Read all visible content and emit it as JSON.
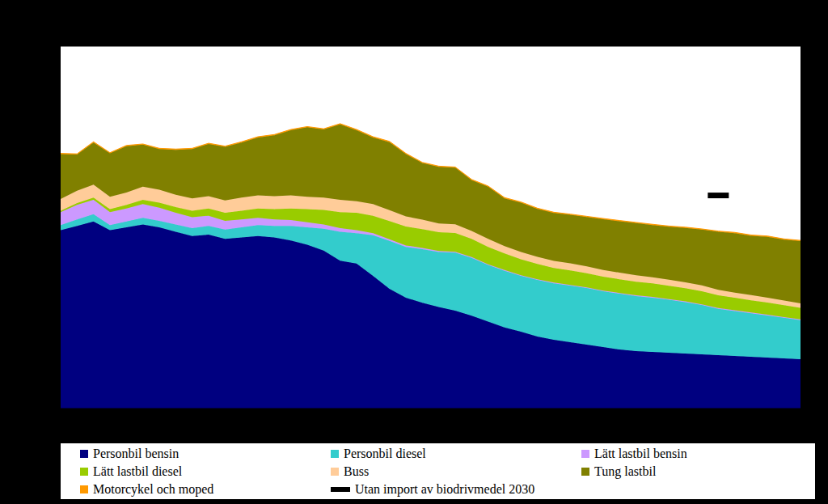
{
  "chart_data": {
    "type": "area",
    "stacked": true,
    "grid": true,
    "tick_labels": false,
    "legend": "bottom",
    "x": [
      1990,
      1991,
      1992,
      1993,
      1994,
      1995,
      1996,
      1997,
      1998,
      1999,
      2000,
      2001,
      2002,
      2003,
      2004,
      2005,
      2006,
      2007,
      2008,
      2009,
      2010,
      2011,
      2012,
      2013,
      2014,
      2015,
      2016,
      2017,
      2018,
      2019,
      2020,
      2021,
      2022,
      2023,
      2024,
      2025,
      2026,
      2027,
      2028,
      2029,
      2030,
      2031,
      2032,
      2033,
      2034,
      2035
    ],
    "xlim": [
      1990,
      2035
    ],
    "ylim": [
      0,
      25
    ],
    "yticks": [
      0,
      5,
      10,
      15,
      20,
      25
    ],
    "series": [
      {
        "name": "Personbil bensin",
        "color": "#000080",
        "values": [
          12.3,
          12.6,
          12.9,
          12.3,
          12.5,
          12.7,
          12.5,
          12.2,
          11.9,
          12.0,
          11.7,
          11.8,
          11.9,
          11.8,
          11.6,
          11.3,
          10.9,
          10.2,
          10.0,
          9.15,
          8.26,
          7.65,
          7.3,
          7.0,
          6.75,
          6.4,
          6.0,
          5.6,
          5.3,
          4.97,
          4.74,
          4.58,
          4.41,
          4.24,
          4.07,
          3.96,
          3.9,
          3.85,
          3.79,
          3.74,
          3.68,
          3.63,
          3.57,
          3.52,
          3.46,
          3.4
        ]
      },
      {
        "name": "Personbil diesel",
        "color": "#33CCCC",
        "values": [
          0.35,
          0.45,
          0.5,
          0.35,
          0.4,
          0.45,
          0.45,
          0.5,
          0.55,
          0.6,
          0.65,
          0.7,
          0.75,
          0.8,
          1.0,
          1.2,
          1.5,
          2.0,
          2.1,
          2.8,
          3.3,
          3.5,
          3.7,
          3.8,
          4.0,
          4.0,
          3.9,
          3.9,
          3.85,
          3.9,
          3.9,
          3.9,
          3.9,
          3.85,
          3.85,
          3.8,
          3.75,
          3.65,
          3.55,
          3.4,
          3.2,
          3.1,
          3.0,
          2.9,
          2.8,
          2.7
        ]
      },
      {
        "name": "Lätt lastbil bensin",
        "color": "#CC99FF",
        "values": [
          0.9,
          1.0,
          1.0,
          0.9,
          0.9,
          0.95,
          0.9,
          0.8,
          0.75,
          0.7,
          0.6,
          0.55,
          0.5,
          0.45,
          0.4,
          0.35,
          0.3,
          0.25,
          0.2,
          0.15,
          0.12,
          0.1,
          0.08,
          0.07,
          0.06,
          0.05,
          0.05,
          0.05,
          0.05,
          0.05,
          0.05,
          0.05,
          0.05,
          0.05,
          0.05,
          0.05,
          0.05,
          0.05,
          0.05,
          0.05,
          0.05,
          0.05,
          0.05,
          0.05,
          0.05,
          0.05
        ]
      },
      {
        "name": "Lätt lastbil diesel",
        "color": "#99CC00",
        "values": [
          0.1,
          0.12,
          0.15,
          0.2,
          0.25,
          0.3,
          0.35,
          0.4,
          0.45,
          0.5,
          0.55,
          0.6,
          0.65,
          0.7,
          0.8,
          0.9,
          1.0,
          1.1,
          1.2,
          1.2,
          1.25,
          1.3,
          1.3,
          1.3,
          1.3,
          1.25,
          1.2,
          1.15,
          1.1,
          1.05,
          1.0,
          1.0,
          0.98,
          0.96,
          0.95,
          0.94,
          0.93,
          0.92,
          0.91,
          0.9,
          0.88,
          0.86,
          0.85,
          0.84,
          0.82,
          0.8
        ]
      },
      {
        "name": "Buss",
        "color": "#FFCC99",
        "values": [
          0.8,
          0.85,
          0.9,
          0.85,
          0.85,
          0.9,
          0.9,
          0.85,
          0.85,
          0.85,
          0.85,
          0.9,
          0.9,
          0.9,
          0.9,
          0.85,
          0.85,
          0.85,
          0.8,
          0.8,
          0.75,
          0.7,
          0.65,
          0.6,
          0.6,
          0.55,
          0.55,
          0.5,
          0.5,
          0.5,
          0.5,
          0.48,
          0.47,
          0.46,
          0.45,
          0.44,
          0.43,
          0.42,
          0.41,
          0.4,
          0.38,
          0.36,
          0.35,
          0.34,
          0.32,
          0.3
        ]
      },
      {
        "name": "Tung lastbil",
        "color": "#808000",
        "values": [
          3.1,
          2.5,
          2.9,
          3.0,
          3.2,
          2.9,
          2.8,
          3.1,
          3.4,
          3.6,
          3.7,
          3.8,
          4.0,
          4.2,
          4.5,
          4.8,
          4.7,
          5.2,
          4.9,
          4.6,
          4.7,
          4.3,
          3.9,
          3.9,
          3.9,
          3.5,
          3.6,
          3.3,
          3.4,
          3.3,
          3.3,
          3.35,
          3.4,
          3.5,
          3.55,
          3.6,
          3.6,
          3.65,
          3.75,
          3.85,
          4.0,
          4.1,
          4.1,
          4.2,
          4.2,
          4.3
        ]
      },
      {
        "name": "Motorcykel och moped",
        "color": "#FF9900",
        "values": [
          0.05,
          0.05,
          0.05,
          0.05,
          0.05,
          0.05,
          0.05,
          0.05,
          0.05,
          0.05,
          0.05,
          0.05,
          0.05,
          0.05,
          0.05,
          0.05,
          0.05,
          0.05,
          0.05,
          0.05,
          0.05,
          0.05,
          0.05,
          0.05,
          0.05,
          0.05,
          0.05,
          0.05,
          0.05,
          0.05,
          0.05,
          0.05,
          0.05,
          0.05,
          0.05,
          0.05,
          0.05,
          0.05,
          0.05,
          0.05,
          0.05,
          0.05,
          0.05,
          0.05,
          0.05,
          0.05
        ]
      },
      {
        "name": "Utan import av biodrivmedel 2030",
        "color": "#000000",
        "type": "scatter",
        "marker": "dash",
        "values": [
          null,
          null,
          null,
          null,
          null,
          null,
          null,
          null,
          null,
          null,
          null,
          null,
          null,
          null,
          null,
          null,
          null,
          null,
          null,
          null,
          null,
          null,
          null,
          null,
          null,
          null,
          null,
          null,
          null,
          null,
          null,
          null,
          null,
          null,
          null,
          null,
          null,
          null,
          null,
          null,
          14.7,
          null,
          null,
          null,
          null,
          null
        ]
      }
    ]
  }
}
